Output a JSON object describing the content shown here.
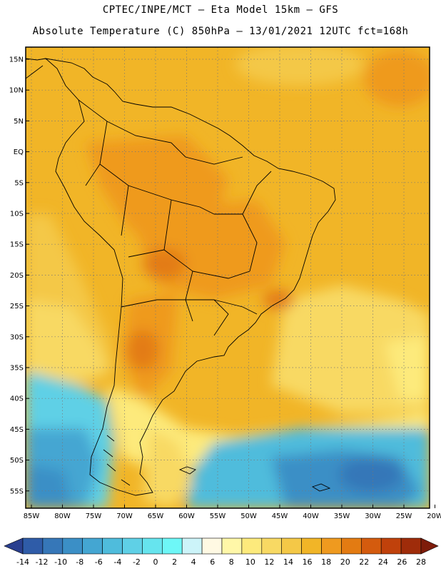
{
  "header": {
    "line1": "CPTEC/INPE/MCT –  Eta Model 15km – GFS",
    "line2": "Absolute Temperature (C) 850hPa – 13/01/2021 12UTC fct=168h"
  },
  "map": {
    "lat_labels": [
      "15N",
      "10N",
      "5N",
      "EQ",
      "5S",
      "10S",
      "15S",
      "20S",
      "25S",
      "30S",
      "35S",
      "40S",
      "45S",
      "50S",
      "55S"
    ],
    "lon_labels": [
      "85W",
      "80W",
      "75W",
      "70W",
      "65W",
      "60W",
      "55W",
      "50W",
      "45W",
      "40W",
      "35W",
      "30W",
      "25W",
      "20W"
    ]
  },
  "colorbar": {
    "labels": [
      "-14",
      "-12",
      "-10",
      "-8",
      "-6",
      "-4",
      "-2",
      "0",
      "2",
      "4",
      "6",
      "8",
      "10",
      "12",
      "14",
      "16",
      "18",
      "20",
      "22",
      "24",
      "26",
      "28"
    ],
    "colors": [
      "#2a3f8f",
      "#2f5ca8",
      "#3677b8",
      "#3b8fc6",
      "#44a6d2",
      "#4fbcdc",
      "#5fd0e6",
      "#66e4ee",
      "#6ef7f7",
      "#ccf4f9",
      "#fff9e3",
      "#fff7a8",
      "#fdea7c",
      "#f8d963",
      "#f4c847",
      "#f1b527",
      "#ef9a1f",
      "#e37b12",
      "#d45b0e",
      "#c0410b",
      "#9f2c0a",
      "#7e1c0a"
    ]
  }
}
